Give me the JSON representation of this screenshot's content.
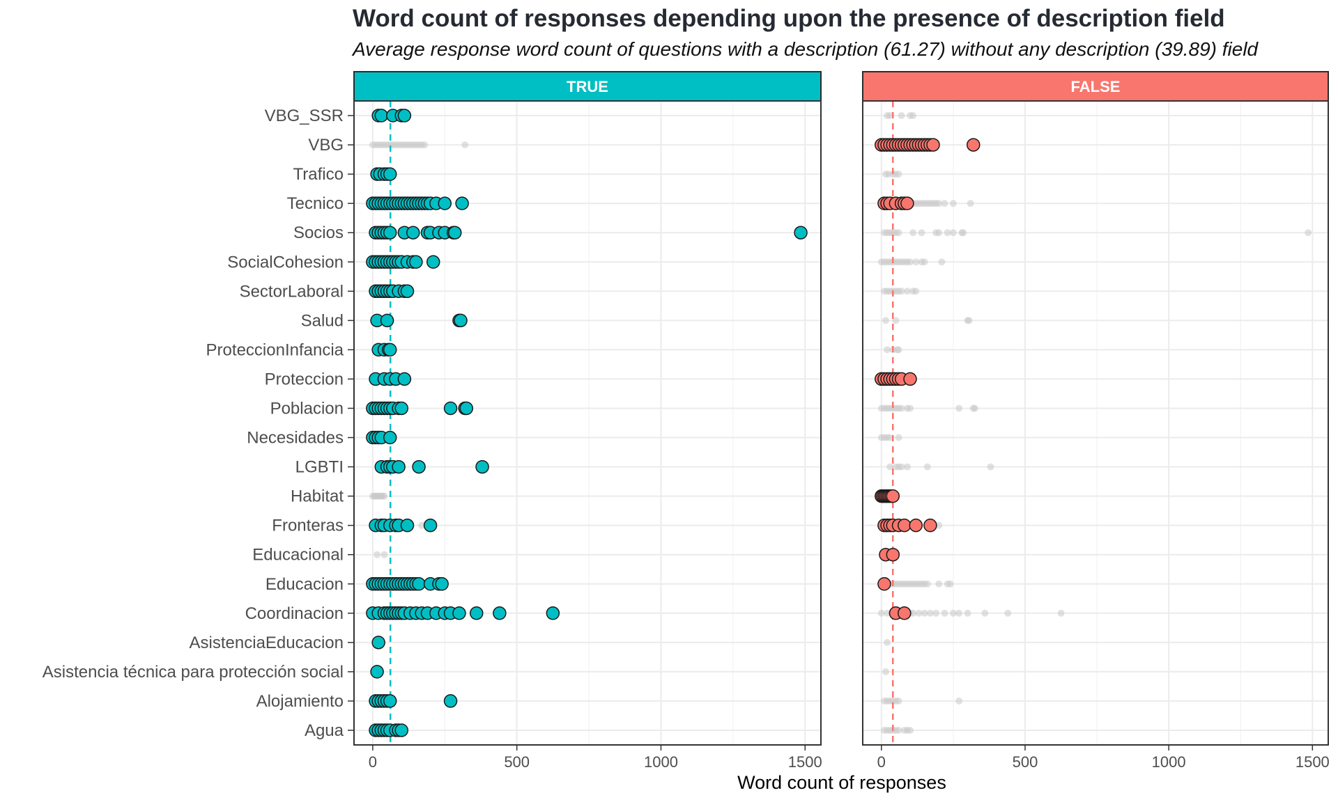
{
  "chart_data": {
    "type": "scatter",
    "title": "Word count of responses depending upon the presence of description field",
    "subtitle": "Average response word count of questions with a description (61.27) without any description (39.89) field",
    "xlabel": "Word count of responses",
    "ylabel": "",
    "xlim": [
      -65,
      1555
    ],
    "xticks": [
      0,
      500,
      1000,
      1500
    ],
    "grid": true,
    "categories": [
      "VBG_SSR",
      "VBG",
      "Trafico",
      "Tecnico",
      "Socios",
      "SocialCohesion",
      "SectorLaboral",
      "Salud",
      "ProteccionInfancia",
      "Proteccion",
      "Poblacion",
      "Necesidades",
      "LGBTI",
      "Habitat",
      "Fronteras",
      "Educacional",
      "Educacion",
      "Coordinacion",
      "AsistenciaEducacion",
      "Asistencia técnica para protección social",
      "Alojamiento",
      "Agua"
    ],
    "panels": [
      {
        "name": "TRUE",
        "color": "#00bfc4",
        "mean": 61.27
      },
      {
        "name": "FALSE",
        "color": "#f8766d",
        "mean": 39.89
      }
    ],
    "series": [
      {
        "name": "TRUE",
        "points": {
          "VBG_SSR": [
            20,
            30,
            70,
            100,
            110
          ],
          "Trafico": [
            15,
            25,
            40,
            50,
            60
          ],
          "Tecnico": [
            0,
            10,
            20,
            30,
            40,
            50,
            60,
            70,
            80,
            90,
            100,
            110,
            120,
            130,
            140,
            150,
            160,
            170,
            180,
            190,
            200,
            220,
            250,
            310
          ],
          "Socios": [
            10,
            20,
            30,
            40,
            50,
            60,
            110,
            140,
            190,
            200,
            230,
            250,
            280,
            285,
            1485
          ],
          "SocialCohesion": [
            0,
            10,
            20,
            30,
            40,
            50,
            60,
            70,
            80,
            90,
            100,
            120,
            140,
            150,
            210
          ],
          "SectorLaboral": [
            10,
            20,
            30,
            40,
            50,
            60,
            70,
            90,
            110,
            120
          ],
          "Salud": [
            15,
            50,
            300,
            305
          ],
          "ProteccionInfancia": [
            20,
            40,
            55,
            60
          ],
          "Proteccion": [
            10,
            40,
            60,
            80,
            110
          ],
          "Poblacion": [
            0,
            10,
            20,
            30,
            40,
            50,
            60,
            70,
            90,
            100,
            270,
            320,
            325
          ],
          "Necesidades": [
            0,
            10,
            20,
            30,
            60
          ],
          "LGBTI": [
            30,
            50,
            60,
            70,
            90,
            160,
            380
          ],
          "Fronteras": [
            10,
            30,
            40,
            60,
            80,
            90,
            120,
            200
          ],
          "Educacion": [
            0,
            10,
            20,
            30,
            40,
            50,
            60,
            70,
            80,
            90,
            100,
            110,
            120,
            130,
            140,
            150,
            160,
            200,
            230,
            240
          ],
          "Coordinacion": [
            0,
            20,
            40,
            50,
            60,
            70,
            80,
            90,
            100,
            110,
            130,
            150,
            170,
            190,
            220,
            250,
            270,
            300,
            360,
            440,
            625
          ],
          "AsistenciaEducacion": [
            20
          ],
          "Asistencia técnica para protección social": [
            15
          ],
          "Alojamiento": [
            10,
            20,
            30,
            40,
            50,
            60,
            270
          ],
          "Agua": [
            10,
            20,
            30,
            40,
            50,
            60,
            80,
            90,
            100
          ]
        }
      },
      {
        "name": "FALSE",
        "points": {
          "VBG": [
            0,
            10,
            20,
            30,
            40,
            50,
            60,
            70,
            80,
            90,
            100,
            110,
            120,
            130,
            140,
            150,
            160,
            170,
            180,
            320
          ],
          "Tecnico": [
            10,
            20,
            30,
            50,
            70,
            80,
            90
          ],
          "Proteccion": [
            0,
            10,
            20,
            30,
            40,
            50,
            60,
            70,
            100
          ],
          "Habitat": [
            0,
            5,
            10,
            15,
            20,
            25,
            30,
            35,
            40
          ],
          "Fronteras": [
            10,
            20,
            30,
            40,
            60,
            80,
            120,
            170
          ],
          "Educacional": [
            15,
            40
          ],
          "Educacion": [
            10
          ],
          "Coordinacion": [
            50,
            80
          ]
        }
      }
    ]
  }
}
